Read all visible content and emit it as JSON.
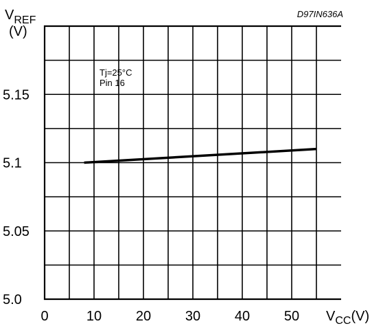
{
  "chart_data": {
    "type": "line",
    "code": "D97IN636A",
    "ylabel": {
      "main": "V",
      "sub": "REF",
      "unit": "(V)"
    },
    "xlabel": {
      "main": "V",
      "sub": "CC",
      "unit": "(V)"
    },
    "annotation": [
      "Tj=25°C",
      "Pin 16"
    ],
    "xlim": [
      0,
      60
    ],
    "ylim": [
      5.0,
      5.2
    ],
    "x_grid_step": 5,
    "y_grid_step": 0.025,
    "x_ticks": [
      {
        "value": 0,
        "label": "0"
      },
      {
        "value": 10,
        "label": "10"
      },
      {
        "value": 20,
        "label": "20"
      },
      {
        "value": 30,
        "label": "30"
      },
      {
        "value": 40,
        "label": "40"
      },
      {
        "value": 50,
        "label": "50"
      }
    ],
    "y_ticks": [
      {
        "value": 5.0,
        "label": "5.0"
      },
      {
        "value": 5.05,
        "label": "5.05"
      },
      {
        "value": 5.1,
        "label": "5.1"
      },
      {
        "value": 5.15,
        "label": "5.15"
      }
    ],
    "grid": true,
    "series": [
      {
        "x": [
          8,
          55
        ],
        "y": [
          5.1,
          5.11
        ],
        "color": "#000000"
      }
    ]
  }
}
